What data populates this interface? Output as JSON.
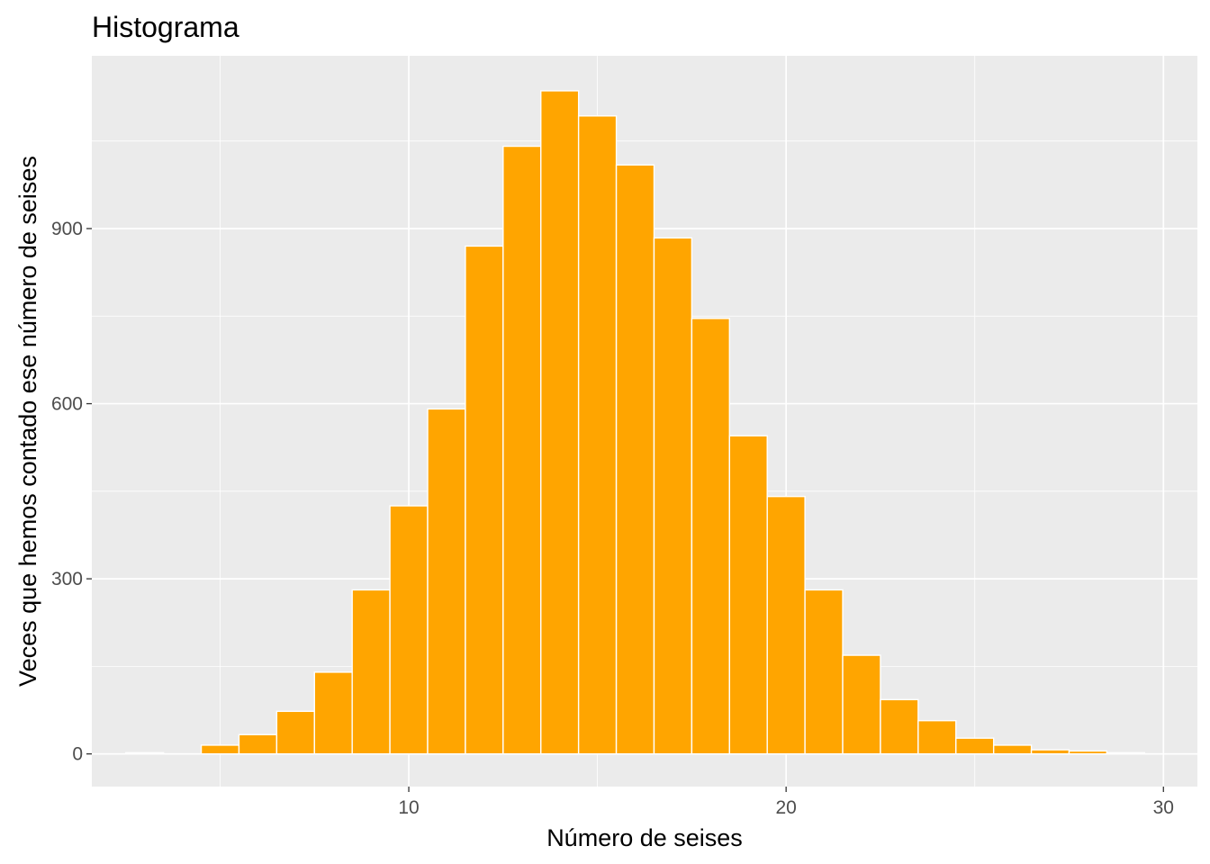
{
  "chart_data": {
    "type": "bar",
    "title": "Histograma",
    "xlabel": "Número de seises",
    "ylabel": "Veces que hemos contado ese número de seises",
    "x": [
      3,
      4,
      5,
      6,
      7,
      8,
      9,
      10,
      11,
      12,
      13,
      14,
      15,
      16,
      17,
      18,
      19,
      20,
      21,
      22,
      23,
      24,
      25,
      26,
      27,
      28,
      29
    ],
    "values": [
      2,
      0,
      15,
      33,
      73,
      140,
      281,
      425,
      591,
      870,
      1041,
      1136,
      1093,
      1009,
      884,
      746,
      545,
      441,
      281,
      169,
      93,
      57,
      27,
      15,
      7,
      5,
      2
    ],
    "xlim": [
      1.6,
      30.9
    ],
    "ylim": [
      -56,
      1196
    ],
    "xticks": [
      10,
      20,
      30
    ],
    "xtick_labels": [
      "10",
      "20",
      "30"
    ],
    "yticks": [
      0,
      300,
      600,
      900
    ],
    "ytick_labels": [
      "0",
      "300",
      "600",
      "900"
    ],
    "grid": true,
    "bar_fill": "#ffa500",
    "bar_outline": "#ffffff",
    "panel_background": "#ebebeb",
    "gridline_color": "#ffffff",
    "tick_label_color": "#4d4d4d"
  }
}
